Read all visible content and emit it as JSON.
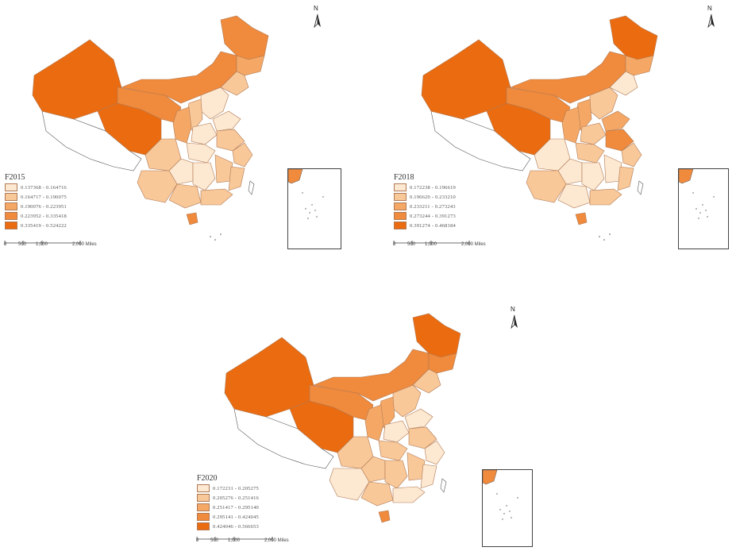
{
  "colors": {
    "class1": "#fde8d1",
    "class2": "#f9c899",
    "class3": "#f5a866",
    "class4": "#f08a3c",
    "class5": "#ea6b10",
    "border": "#b07a55",
    "coast": "#444444"
  },
  "panels": [
    {
      "title": "F2015",
      "legend": [
        "0.137368 - 0.164716",
        "0.164717 - 0.190075",
        "0.190076 - 0.223951",
        "0.223952 - 0.335418",
        "0.335419 - 0.524222"
      ],
      "scale": {
        "ticks": [
          "0",
          "500",
          "1,000",
          "2,000 Miles"
        ]
      },
      "north": "N"
    },
    {
      "title": "F2018",
      "legend": [
        "0.172238 - 0.196619",
        "0.196620 - 0.233210",
        "0.233211 - 0.273243",
        "0.273244 - 0.391273",
        "0.391274 - 0.468184"
      ],
      "scale": {
        "ticks": [
          "0",
          "500",
          "1,000",
          "2,000 Miles"
        ]
      },
      "north": "N"
    },
    {
      "title": "F2020",
      "legend": [
        "0.172231 - 0.205275",
        "0.205276 - 0.251416",
        "0.251417 - 0.295140",
        "0.295141 - 0.424045",
        "0.424046 - 0.566653"
      ],
      "scale": {
        "ticks": [
          "0",
          "500",
          "1,000",
          "2,000 Miles"
        ]
      },
      "north": "N"
    }
  ]
}
